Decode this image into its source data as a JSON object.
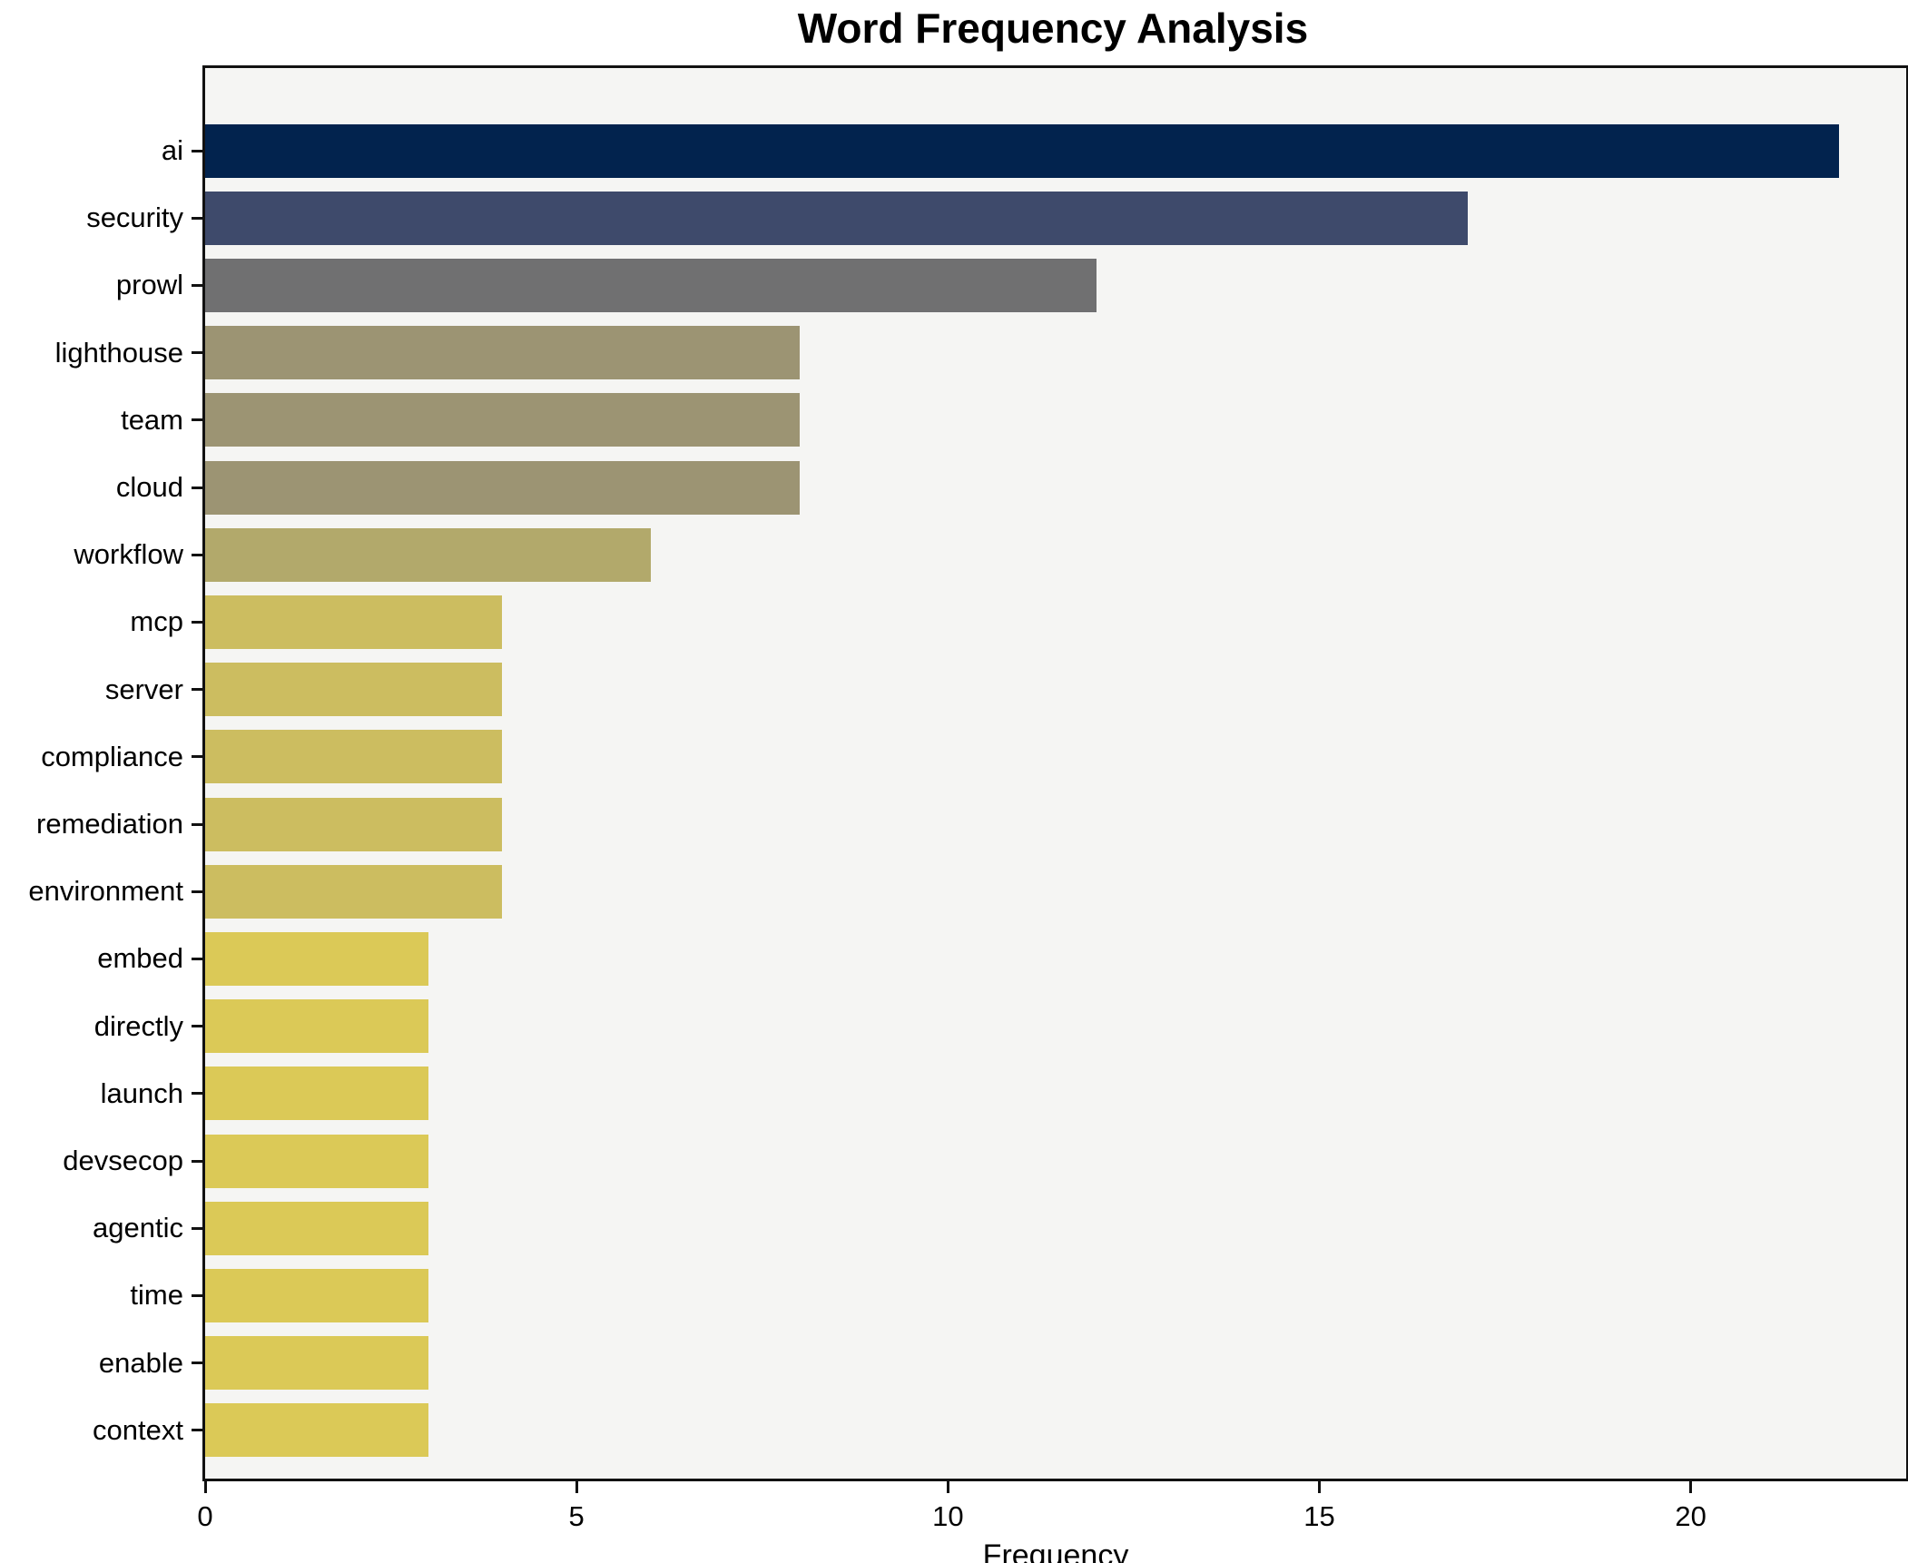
{
  "chart_data": {
    "type": "bar",
    "orientation": "horizontal",
    "title": "Word Frequency Analysis",
    "xlabel": "Frequency",
    "ylabel": "",
    "categories": [
      "ai",
      "security",
      "prowl",
      "lighthouse",
      "team",
      "cloud",
      "workflow",
      "mcp",
      "server",
      "compliance",
      "remediation",
      "environment",
      "embed",
      "directly",
      "launch",
      "devsecop",
      "agentic",
      "time",
      "enable",
      "context"
    ],
    "values": [
      22,
      17,
      12,
      8,
      8,
      8,
      6,
      4,
      4,
      4,
      4,
      4,
      3,
      3,
      3,
      3,
      3,
      3,
      3,
      3
    ],
    "bar_colors": [
      "#02234e",
      "#3e4a6b",
      "#707071",
      "#9c9473",
      "#9c9473",
      "#9c9473",
      "#b2a96b",
      "#ccbd60",
      "#ccbd60",
      "#ccbd60",
      "#ccbd60",
      "#ccbd60",
      "#dbc957",
      "#dbc957",
      "#dbc957",
      "#dbc957",
      "#dbc957",
      "#dbc957",
      "#dbc957",
      "#dbc957"
    ],
    "x_ticks": [
      "0",
      "5",
      "10",
      "15",
      "20"
    ],
    "x_tick_values": [
      0,
      5,
      10,
      15,
      20
    ],
    "xlim": [
      0,
      22.9
    ],
    "grid": false,
    "legend": null,
    "plot_background": "#f5f5f3",
    "figure_background": "#ffffff",
    "spine_color": "#111111"
  }
}
